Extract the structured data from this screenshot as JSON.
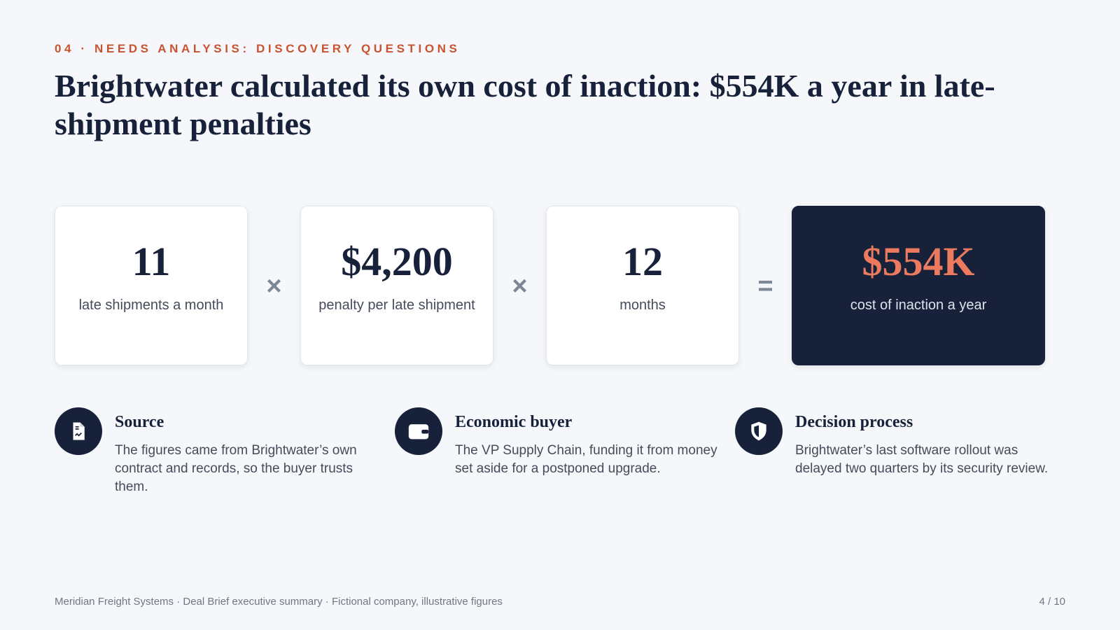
{
  "header": {
    "eyebrow": "04 · NEEDS ANALYSIS: DISCOVERY QUESTIONS",
    "title": "Brightwater calculated its own cost of inaction: $554K a year in late-shipment penalties"
  },
  "equation": {
    "terms": [
      {
        "value": "11",
        "label": "late shipments a month"
      },
      {
        "value": "$4,200",
        "label": "penalty per late shipment"
      },
      {
        "value": "12",
        "label": "months"
      }
    ],
    "operators": [
      "×",
      "×",
      "="
    ],
    "result": {
      "value": "$554K",
      "label": "cost of inaction a year"
    }
  },
  "notes": [
    {
      "title": "Source",
      "text": "The figures came from Brightwater’s own contract and records, so the buyer trusts them."
    },
    {
      "title": "Economic buyer",
      "text": "The VP Supply Chain, funding it from money set aside for a postponed upgrade."
    },
    {
      "title": "Decision process",
      "text": "Brightwater’s last software rollout was delayed two quarters by its security review."
    }
  ],
  "footer": {
    "text": "Meridian Freight Systems · Deal Brief executive summary · Fictional company, illustrative figures",
    "page": "4 / 10"
  }
}
